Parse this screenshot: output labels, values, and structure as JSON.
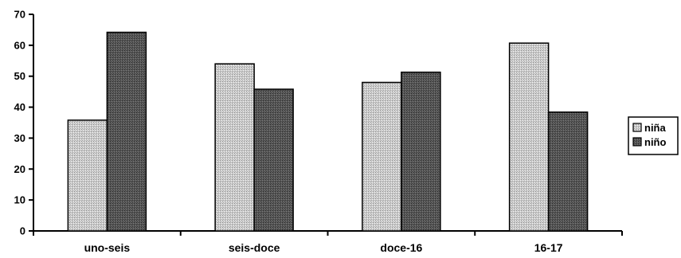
{
  "chart_data": {
    "type": "bar",
    "categories": [
      "uno-seis",
      "seis-doce",
      "doce-16",
      "16-17"
    ],
    "series": [
      {
        "name": "niña",
        "values": [
          35.8,
          54,
          48,
          60.7
        ],
        "color": "#c8c8c8",
        "pattern": "light-stipple"
      },
      {
        "name": "niño",
        "values": [
          64.2,
          45.8,
          51.3,
          38.4
        ],
        "color": "#555555",
        "pattern": "dark-stipple"
      }
    ],
    "ylim": [
      0,
      70
    ],
    "yticks": [
      "0",
      "10",
      "20",
      "30",
      "40",
      "50",
      "60",
      "70"
    ],
    "title": "",
    "xlabel": "",
    "ylabel": "",
    "grid": false,
    "legend_position": "right"
  }
}
